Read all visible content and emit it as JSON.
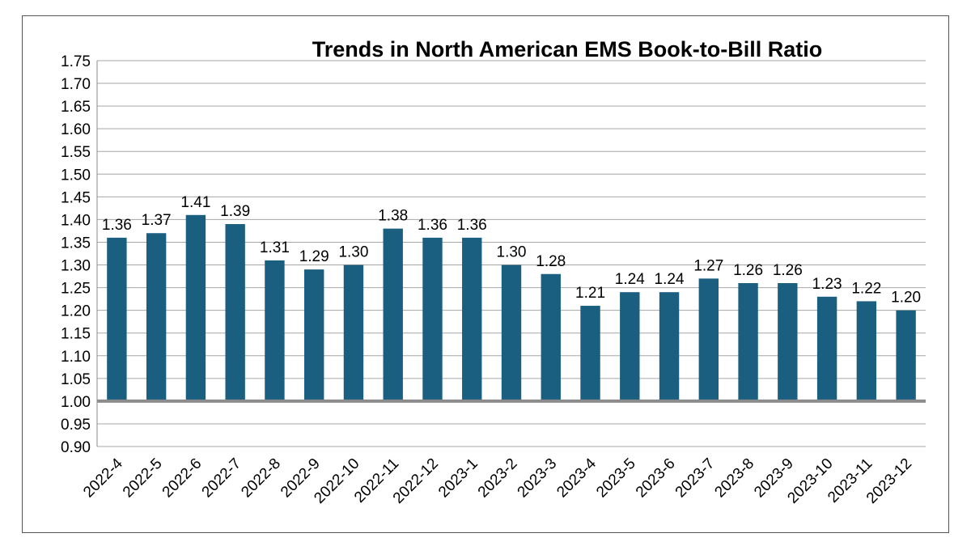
{
  "chart_data": {
    "type": "bar",
    "title": "Trends in North American EMS Book-to-Bill Ratio",
    "xlabel": "",
    "ylabel": "",
    "ylim": [
      0.9,
      1.75
    ],
    "ystep": 0.05,
    "baseline": 1.0,
    "yticks": [
      "1.75",
      "1.70",
      "1.65",
      "1.60",
      "1.55",
      "1.50",
      "1.45",
      "1.40",
      "1.35",
      "1.30",
      "1.25",
      "1.20",
      "1.15",
      "1.10",
      "1.05",
      "1.00",
      "0.95",
      "0.90"
    ],
    "grid": true,
    "legend": "none",
    "categories": [
      "2022-4",
      "2022-5",
      "2022-6",
      "2022-7",
      "2022-8",
      "2022-9",
      "2022-10",
      "2022-11",
      "2022-12",
      "2023-1",
      "2023-2",
      "2023-3",
      "2023-4",
      "2023-5",
      "2023-6",
      "2023-7",
      "2023-8",
      "2023-9",
      "2023-10",
      "2023-11",
      "2023-12"
    ],
    "values": [
      1.36,
      1.37,
      1.41,
      1.39,
      1.31,
      1.29,
      1.3,
      1.38,
      1.36,
      1.36,
      1.3,
      1.28,
      1.21,
      1.24,
      1.24,
      1.27,
      1.26,
      1.26,
      1.23,
      1.22,
      1.2
    ],
    "data_labels": [
      "1.36",
      "1.37",
      "1.41",
      "1.39",
      "1.31",
      "1.29",
      "1.30",
      "1.38",
      "1.36",
      "1.36",
      "1.30",
      "1.28",
      "1.21",
      "1.24",
      "1.24",
      "1.27",
      "1.26",
      "1.26",
      "1.23",
      "1.22",
      "1.20"
    ],
    "colors": {
      "bar": "#1a5f80",
      "grid": "#a6a6a6",
      "baseline": "#8c8c8c",
      "axis": "#8c8c8c",
      "text": "#000000"
    }
  }
}
